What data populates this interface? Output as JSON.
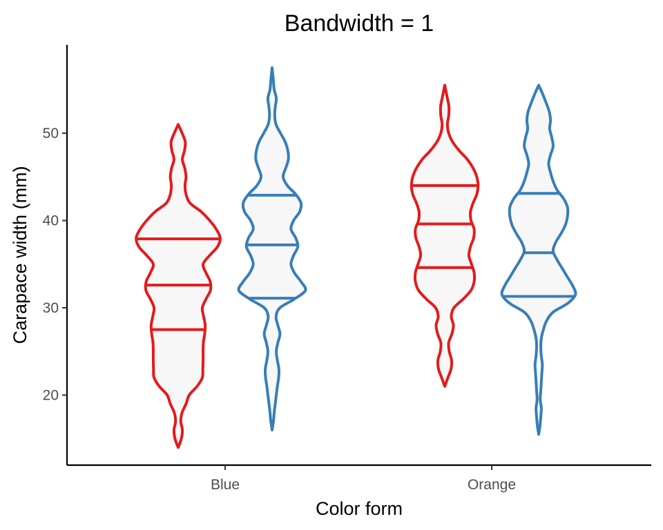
{
  "chart_data": {
    "type": "violin",
    "title": "Bandwidth = 1",
    "xlabel": "Color form",
    "ylabel": "Carapace width (mm)",
    "categories": [
      "Blue",
      "Orange"
    ],
    "y_ticks": [
      20,
      30,
      40,
      50
    ],
    "ylim": [
      12,
      60
    ],
    "grid": false,
    "legend": "none",
    "series": [
      {
        "color": "#e41a1c",
        "groups": [
          {
            "category": "Blue",
            "quantiles": [
              27.5,
              32.6,
              37.9
            ],
            "profile": [
              [
                14.0,
                0.0
              ],
              [
                15.0,
                0.12
              ],
              [
                16.0,
                0.16
              ],
              [
                17.0,
                0.1
              ],
              [
                18.0,
                0.15
              ],
              [
                19.0,
                0.3
              ],
              [
                20.0,
                0.42
              ],
              [
                21.0,
                0.72
              ],
              [
                22.0,
                0.92
              ],
              [
                23.0,
                0.94
              ],
              [
                24.0,
                0.95
              ],
              [
                25.0,
                0.95
              ],
              [
                26.0,
                0.96
              ],
              [
                27.0,
                1.01
              ],
              [
                28.0,
                1.03
              ],
              [
                29.0,
                0.97
              ],
              [
                30.0,
                0.92
              ],
              [
                31.0,
                1.06
              ],
              [
                32.0,
                1.23
              ],
              [
                33.0,
                1.22
              ],
              [
                34.0,
                1.06
              ],
              [
                35.0,
                0.95
              ],
              [
                36.0,
                1.2
              ],
              [
                37.0,
                1.5
              ],
              [
                38.0,
                1.6
              ],
              [
                39.0,
                1.45
              ],
              [
                40.0,
                1.2
              ],
              [
                41.0,
                0.88
              ],
              [
                42.0,
                0.45
              ],
              [
                43.0,
                0.3
              ],
              [
                44.0,
                0.26
              ],
              [
                45.0,
                0.3
              ],
              [
                46.0,
                0.25
              ],
              [
                47.0,
                0.16
              ],
              [
                48.0,
                0.24
              ],
              [
                49.0,
                0.27
              ],
              [
                50.0,
                0.15
              ],
              [
                51.0,
                0.0
              ]
            ]
          },
          {
            "category": "Orange",
            "quantiles": [
              34.6,
              39.6,
              44.0
            ],
            "profile": [
              [
                21.0,
                0.0
              ],
              [
                22.0,
                0.12
              ],
              [
                23.0,
                0.24
              ],
              [
                24.0,
                0.26
              ],
              [
                25.0,
                0.17
              ],
              [
                26.0,
                0.15
              ],
              [
                27.0,
                0.27
              ],
              [
                28.0,
                0.33
              ],
              [
                29.0,
                0.25
              ],
              [
                30.0,
                0.35
              ],
              [
                31.0,
                0.7
              ],
              [
                32.0,
                1.0
              ],
              [
                33.0,
                1.12
              ],
              [
                34.0,
                1.12
              ],
              [
                35.0,
                1.02
              ],
              [
                36.0,
                0.92
              ],
              [
                37.0,
                0.98
              ],
              [
                38.0,
                1.1
              ],
              [
                39.0,
                1.12
              ],
              [
                40.0,
                1.0
              ],
              [
                41.0,
                0.98
              ],
              [
                42.0,
                1.08
              ],
              [
                43.0,
                1.22
              ],
              [
                44.0,
                1.27
              ],
              [
                45.0,
                1.22
              ],
              [
                46.0,
                1.08
              ],
              [
                47.0,
                0.86
              ],
              [
                48.0,
                0.55
              ],
              [
                49.0,
                0.3
              ],
              [
                50.0,
                0.15
              ],
              [
                51.0,
                0.1
              ],
              [
                52.0,
                0.15
              ],
              [
                53.0,
                0.16
              ],
              [
                54.0,
                0.1
              ],
              [
                55.5,
                0.0
              ]
            ]
          }
        ]
      },
      {
        "color": "#377eb8",
        "groups": [
          {
            "category": "Blue",
            "quantiles": [
              31.1,
              37.2,
              42.9
            ],
            "profile": [
              [
                16.0,
                0.0
              ],
              [
                17.0,
                0.05
              ],
              [
                18.0,
                0.08
              ],
              [
                19.0,
                0.12
              ],
              [
                20.0,
                0.16
              ],
              [
                21.0,
                0.2
              ],
              [
                22.0,
                0.25
              ],
              [
                23.0,
                0.26
              ],
              [
                24.0,
                0.2
              ],
              [
                25.0,
                0.16
              ],
              [
                26.0,
                0.22
              ],
              [
                27.0,
                0.3
              ],
              [
                28.0,
                0.22
              ],
              [
                29.0,
                0.15
              ],
              [
                30.0,
                0.3
              ],
              [
                31.0,
                0.85
              ],
              [
                32.0,
                1.27
              ],
              [
                33.0,
                1.1
              ],
              [
                34.0,
                0.85
              ],
              [
                35.0,
                0.72
              ],
              [
                36.0,
                0.82
              ],
              [
                37.0,
                0.98
              ],
              [
                38.0,
                0.9
              ],
              [
                39.0,
                0.72
              ],
              [
                40.0,
                0.82
              ],
              [
                41.0,
                1.05
              ],
              [
                42.0,
                1.1
              ],
              [
                43.0,
                0.9
              ],
              [
                44.0,
                0.58
              ],
              [
                45.0,
                0.42
              ],
              [
                46.0,
                0.52
              ],
              [
                47.0,
                0.62
              ],
              [
                48.0,
                0.6
              ],
              [
                49.0,
                0.5
              ],
              [
                50.0,
                0.32
              ],
              [
                51.0,
                0.15
              ],
              [
                52.0,
                0.1
              ],
              [
                53.0,
                0.12
              ],
              [
                54.0,
                0.16
              ],
              [
                55.0,
                0.08
              ],
              [
                56.0,
                0.05
              ],
              [
                57.5,
                0.0
              ]
            ]
          },
          {
            "category": "Orange",
            "quantiles": [
              31.3,
              36.3,
              43.1
            ],
            "profile": [
              [
                15.5,
                0.0
              ],
              [
                16.5,
                0.05
              ],
              [
                17.5,
                0.08
              ],
              [
                18.5,
                0.1
              ],
              [
                19.5,
                0.06
              ],
              [
                20.5,
                0.08
              ],
              [
                21.5,
                0.1
              ],
              [
                22.5,
                0.12
              ],
              [
                23.5,
                0.14
              ],
              [
                24.5,
                0.1
              ],
              [
                25.5,
                0.08
              ],
              [
                26.5,
                0.1
              ],
              [
                27.5,
                0.18
              ],
              [
                28.5,
                0.3
              ],
              [
                29.5,
                0.55
              ],
              [
                30.5,
                1.1
              ],
              [
                31.5,
                1.4
              ],
              [
                32.5,
                1.3
              ],
              [
                33.5,
                1.1
              ],
              [
                34.5,
                0.9
              ],
              [
                35.5,
                0.7
              ],
              [
                36.5,
                0.55
              ],
              [
                37.5,
                0.65
              ],
              [
                38.5,
                0.85
              ],
              [
                39.5,
                1.02
              ],
              [
                40.5,
                1.1
              ],
              [
                41.5,
                1.1
              ],
              [
                42.5,
                0.95
              ],
              [
                43.5,
                0.7
              ],
              [
                44.5,
                0.55
              ],
              [
                45.5,
                0.45
              ],
              [
                46.5,
                0.38
              ],
              [
                47.5,
                0.45
              ],
              [
                48.5,
                0.55
              ],
              [
                49.5,
                0.5
              ],
              [
                50.5,
                0.42
              ],
              [
                51.5,
                0.45
              ],
              [
                52.5,
                0.4
              ],
              [
                53.5,
                0.28
              ],
              [
                54.5,
                0.15
              ],
              [
                55.5,
                0.0
              ]
            ]
          }
        ]
      }
    ]
  }
}
